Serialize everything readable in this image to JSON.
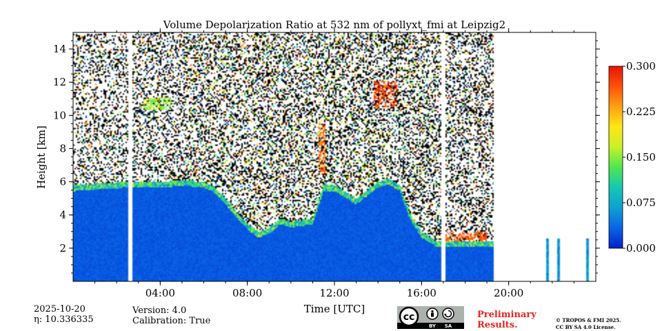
{
  "chart_data": {
    "type": "heatmap",
    "title": "Volume Depolarization Ratio at 532 nm of pollyxt_fmi at Leipzig2",
    "xlabel": "Time [UTC]",
    "ylabel": "Height [km]",
    "xlim": [
      0,
      24
    ],
    "ylim": [
      0,
      15
    ],
    "x_ticks": [
      {
        "value": 4,
        "label": "04:00"
      },
      {
        "value": 8,
        "label": "08:00"
      },
      {
        "value": 12,
        "label": "12:00"
      },
      {
        "value": 16,
        "label": "16:00"
      },
      {
        "value": 20,
        "label": "20:00"
      }
    ],
    "y_ticks": [
      {
        "value": 2,
        "label": "2"
      },
      {
        "value": 4,
        "label": "4"
      },
      {
        "value": 6,
        "label": "6"
      },
      {
        "value": 8,
        "label": "8"
      },
      {
        "value": 10,
        "label": "10"
      },
      {
        "value": 12,
        "label": "12"
      },
      {
        "value": 14,
        "label": "14"
      }
    ],
    "colorbar": {
      "range": [
        0.0,
        0.3
      ],
      "ticks": [
        {
          "value": 0.0,
          "label": "0.000"
        },
        {
          "value": 0.075,
          "label": "0.075"
        },
        {
          "value": 0.15,
          "label": "0.150"
        },
        {
          "value": 0.225,
          "label": "0.225"
        },
        {
          "value": 0.3,
          "label": "0.300"
        }
      ],
      "colormap": [
        "#0020c8",
        "#0a64e6",
        "#0fa0d0",
        "#14c8b4",
        "#50e650",
        "#c8f028",
        "#ffe614",
        "#ffa00f",
        "#ff500a",
        "#e61400"
      ]
    },
    "regions": {
      "noise_top_km": 15,
      "boundary_layer_top_km": [
        [
          0,
          5.8
        ],
        [
          2.5,
          6.0
        ],
        [
          4,
          6.0
        ],
        [
          5,
          6.1
        ],
        [
          6,
          6.0
        ],
        [
          6.5,
          5.7
        ],
        [
          7,
          5.0
        ],
        [
          7.5,
          4.2
        ],
        [
          8,
          3.5
        ],
        [
          8.5,
          3.0
        ],
        [
          9,
          3.2
        ],
        [
          9.5,
          3.8
        ],
        [
          10,
          3.6
        ],
        [
          11,
          3.8
        ],
        [
          11.5,
          5.8
        ],
        [
          12,
          5.8
        ],
        [
          13,
          5.0
        ],
        [
          13.5,
          5.5
        ],
        [
          14,
          6.0
        ],
        [
          14.5,
          6.2
        ],
        [
          15,
          5.8
        ],
        [
          15.5,
          4.0
        ],
        [
          16,
          3.0
        ],
        [
          16.5,
          2.6
        ]
      ],
      "aerosol_base_depol": 0.02,
      "cirrus_patches": [
        {
          "t0": 13.8,
          "t1": 14.9,
          "h0": 10.5,
          "h1": 12.1,
          "depol": 0.3
        },
        {
          "t0": 3.2,
          "t1": 4.5,
          "h0": 10.3,
          "h1": 11.1,
          "depol": 0.18
        },
        {
          "t0": 11.3,
          "t1": 11.6,
          "h0": 6.5,
          "h1": 9.5,
          "depol": 0.28
        },
        {
          "t0": 17.0,
          "t1": 19.0,
          "h0": 2.3,
          "h1": 3.0,
          "depol": 0.29
        }
      ],
      "data_gaps_utc": [
        [
          2.55,
          2.75
        ],
        [
          16.9,
          17.1
        ]
      ],
      "data_end_utc": 19.3,
      "late_isolated_profiles_utc": [
        21.8,
        22.3,
        23.6
      ]
    }
  },
  "info": {
    "date": "2025-10-20",
    "eta": "η: 10.336335",
    "version": "Version: 4.0",
    "calibration": "Calibration: True",
    "preliminary_line1": "Preliminary",
    "preliminary_line2": "Results.",
    "copyright_line1": "© TROPOS & FMI 2025.",
    "copyright_line2": "CC BY SA 4.0 License.",
    "cc_logo_text": "cc",
    "cc_by_label": "BY",
    "cc_sa_label": "SA"
  }
}
